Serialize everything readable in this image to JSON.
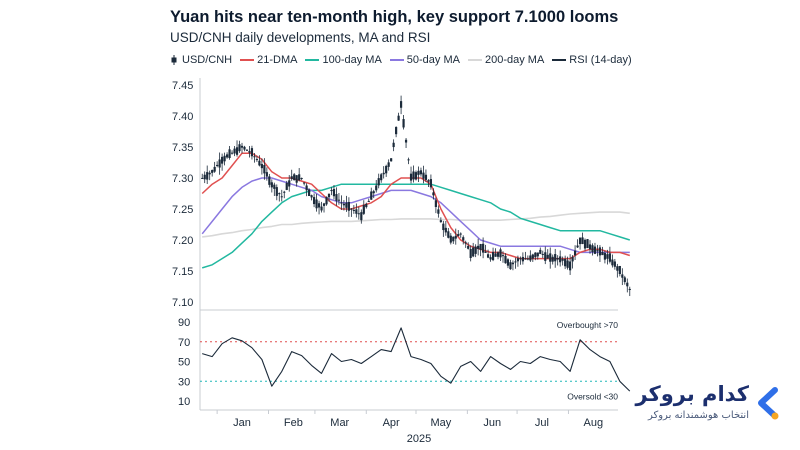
{
  "title": "Yuan hits near ten-month high, key support 7.1000 looms",
  "subtitle": "USD/CNH daily developments, MA and RSI",
  "colors": {
    "usdcnh": "#1b2a3a",
    "ma21": "#e05050",
    "ma100": "#22b8a0",
    "ma50": "#8a78e0",
    "ma200": "#d8d8d8",
    "rsi": "#1b2a3a",
    "overbought": "#e05050",
    "oversold": "#22b8b8",
    "brand_blue": "#1c2f6e",
    "brand_accent": "#2f6fe8",
    "brand_orange": "#f5a623"
  },
  "legend": [
    {
      "label": "USD/CNH",
      "kind": "candle"
    },
    {
      "label": "21-DMA",
      "kind": "line",
      "color": "#e05050"
    },
    {
      "label": "100-day MA",
      "kind": "line",
      "color": "#22b8a0"
    },
    {
      "label": "50-day MA",
      "kind": "line",
      "color": "#8a78e0"
    },
    {
      "label": "200-day MA",
      "kind": "line",
      "color": "#d8d8d8"
    },
    {
      "label": "RSI (14-day)",
      "kind": "line",
      "color": "#1b2a3a"
    }
  ],
  "chart_data": [
    {
      "type": "line",
      "panel": "price",
      "ylim": [
        7.09,
        7.45
      ],
      "y_ticks": [
        "7.10",
        "7.15",
        "7.20",
        "7.25",
        "7.30",
        "7.35",
        "7.40",
        "7.45"
      ],
      "x_categories": [
        "Jan",
        "Feb",
        "Mar",
        "Apr",
        "May",
        "Jun",
        "Jul",
        "Aug"
      ],
      "x": [
        -24,
        -18,
        -12,
        -6,
        0,
        6,
        12,
        18,
        24,
        30,
        36,
        42,
        48,
        54,
        60,
        66,
        72,
        78,
        84,
        90,
        96,
        102,
        108,
        114,
        120,
        126,
        132,
        138,
        144,
        150,
        156,
        162,
        168,
        174,
        180,
        186,
        192,
        198,
        204,
        210,
        216,
        222,
        228,
        234
      ],
      "series": [
        {
          "name": "USD/CNH",
          "values": [
            7.3,
            7.31,
            7.33,
            7.34,
            7.35,
            7.34,
            7.32,
            7.29,
            7.27,
            7.3,
            7.3,
            7.27,
            7.25,
            7.28,
            7.26,
            7.25,
            7.24,
            7.27,
            7.3,
            7.33,
            7.42,
            7.3,
            7.31,
            7.29,
            7.23,
            7.2,
            7.21,
            7.18,
            7.19,
            7.17,
            7.18,
            7.16,
            7.17,
            7.17,
            7.18,
            7.17,
            7.17,
            7.16,
            7.2,
            7.19,
            7.18,
            7.17,
            7.15,
            7.12
          ]
        },
        {
          "name": "21-DMA",
          "values": [
            7.275,
            7.29,
            7.3,
            7.32,
            7.34,
            7.34,
            7.33,
            7.31,
            7.3,
            7.3,
            7.295,
            7.29,
            7.275,
            7.26,
            7.25,
            7.25,
            7.255,
            7.26,
            7.27,
            7.29,
            7.3,
            7.3,
            7.3,
            7.29,
            7.25,
            7.22,
            7.2,
            7.19,
            7.185,
            7.18,
            7.18,
            7.175,
            7.17,
            7.17,
            7.17,
            7.17,
            7.17,
            7.17,
            7.18,
            7.185,
            7.185,
            7.18,
            7.18,
            7.175
          ]
        },
        {
          "name": "100-day MA",
          "values": [
            7.155,
            7.16,
            7.17,
            7.18,
            7.195,
            7.21,
            7.23,
            7.245,
            7.26,
            7.27,
            7.275,
            7.28,
            7.28,
            7.285,
            7.29,
            7.29,
            7.29,
            7.29,
            7.29,
            7.29,
            7.29,
            7.29,
            7.29,
            7.29,
            7.285,
            7.28,
            7.275,
            7.27,
            7.265,
            7.26,
            7.25,
            7.245,
            7.235,
            7.23,
            7.225,
            7.22,
            7.215,
            7.215,
            7.215,
            7.215,
            7.215,
            7.21,
            7.205,
            7.2
          ]
        },
        {
          "name": "50-day MA",
          "values": [
            7.21,
            7.23,
            7.25,
            7.27,
            7.285,
            7.295,
            7.3,
            7.3,
            7.295,
            7.29,
            7.285,
            7.28,
            7.27,
            7.265,
            7.26,
            7.26,
            7.265,
            7.27,
            7.275,
            7.28,
            7.28,
            7.28,
            7.275,
            7.27,
            7.26,
            7.245,
            7.23,
            7.215,
            7.2,
            7.195,
            7.19,
            7.19,
            7.19,
            7.19,
            7.19,
            7.19,
            7.19,
            7.185,
            7.18,
            7.18,
            7.18,
            7.18,
            7.18,
            7.18
          ]
        },
        {
          "name": "200-day MA",
          "values": [
            7.205,
            7.207,
            7.21,
            7.212,
            7.215,
            7.217,
            7.22,
            7.222,
            7.225,
            7.225,
            7.227,
            7.228,
            7.229,
            7.23,
            7.23,
            7.23,
            7.231,
            7.232,
            7.233,
            7.233,
            7.234,
            7.234,
            7.234,
            7.234,
            7.233,
            7.233,
            7.232,
            7.232,
            7.232,
            7.232,
            7.232,
            7.233,
            7.234,
            7.235,
            7.237,
            7.238,
            7.24,
            7.242,
            7.243,
            7.244,
            7.245,
            7.245,
            7.245,
            7.243
          ]
        }
      ]
    },
    {
      "type": "line",
      "panel": "rsi",
      "ylim": [
        5,
        95
      ],
      "y_ticks": [
        "10",
        "30",
        "50",
        "70",
        "90"
      ],
      "x_categories": [
        "Jan",
        "Feb",
        "Mar",
        "Apr",
        "May",
        "Jun",
        "Jul",
        "Aug"
      ],
      "xlabel": "2025",
      "x": [
        -24,
        -18,
        -12,
        -6,
        0,
        6,
        12,
        18,
        24,
        30,
        36,
        42,
        48,
        54,
        60,
        66,
        72,
        78,
        84,
        90,
        96,
        102,
        108,
        114,
        120,
        126,
        132,
        138,
        144,
        150,
        156,
        162,
        168,
        174,
        180,
        186,
        192,
        198,
        204,
        210,
        216,
        222,
        228,
        234
      ],
      "series": [
        {
          "name": "RSI (14-day)",
          "values": [
            58,
            55,
            68,
            74,
            71,
            64,
            52,
            25,
            40,
            60,
            56,
            46,
            38,
            58,
            50,
            52,
            48,
            55,
            62,
            60,
            84,
            55,
            52,
            48,
            35,
            28,
            45,
            50,
            40,
            55,
            48,
            42,
            50,
            48,
            55,
            52,
            50,
            40,
            72,
            62,
            55,
            50,
            30,
            20
          ]
        }
      ],
      "reference_lines": [
        {
          "value": 70,
          "label": "Overbought >70",
          "style": "dotted",
          "color": "#e05050"
        },
        {
          "value": 30,
          "label": "Oversold <30",
          "style": "dotted",
          "color": "#22b8b8"
        }
      ]
    }
  ],
  "logo": {
    "name": "کدام بروکر",
    "tagline": "انتخاب هوشمندانه بروکر"
  }
}
